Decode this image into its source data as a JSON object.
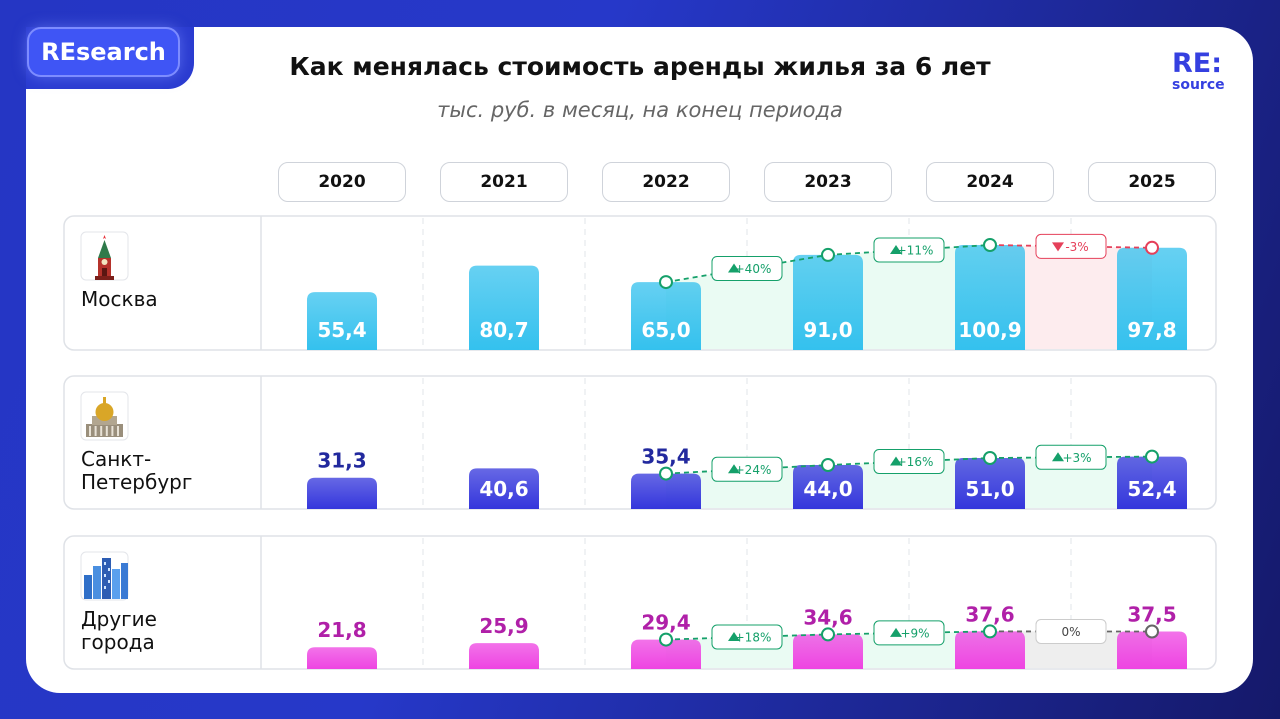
{
  "badge": "REsearch",
  "logo": {
    "line1": "RE:",
    "line2": "source"
  },
  "chart_data": {
    "type": "bar",
    "title": "Как менялась стоимость аренды жилья за 6 лет",
    "subtitle": "тыс. руб. в месяц, на конец периода",
    "categories": [
      "2020",
      "2021",
      "2022",
      "2023",
      "2024",
      "2025"
    ],
    "series": [
      {
        "name": "Москва",
        "label_lines": [
          "Москва"
        ],
        "icon": "kremlin-tower-icon",
        "color": "#34c1ee",
        "label_color": "#ffffff",
        "values": [
          55.4,
          80.7,
          65.0,
          91.0,
          100.9,
          97.8
        ],
        "labels": [
          "55,4",
          "80,7",
          "65,0",
          "91,0",
          "100,9",
          "97,8"
        ],
        "changes": [
          {
            "text": "+40%",
            "trend": "up"
          },
          {
            "text": "+11%",
            "trend": "up"
          },
          {
            "text": "-3%",
            "trend": "down"
          }
        ]
      },
      {
        "name": "Санкт-Петербург",
        "label_lines": [
          "Санкт-",
          "Петербург"
        ],
        "icon": "cathedral-icon",
        "color": "#3436dc",
        "label_color": "#ffffff",
        "values": [
          31.3,
          40.6,
          35.4,
          44.0,
          51.0,
          52.4
        ],
        "labels": [
          "31,3",
          "40,6",
          "35,4",
          "44,0",
          "51,0",
          "52,4"
        ],
        "changes": [
          {
            "text": "+24%",
            "trend": "up"
          },
          {
            "text": "+16%",
            "trend": "up"
          },
          {
            "text": "+3%",
            "trend": "up"
          }
        ]
      },
      {
        "name": "Другие города",
        "label_lines": [
          "Другие",
          "города"
        ],
        "icon": "city-buildings-icon",
        "color": "#ee44e2",
        "label_color": "#b020a8",
        "values": [
          21.8,
          25.9,
          29.4,
          34.6,
          37.6,
          37.5
        ],
        "labels": [
          "21,8",
          "25,9",
          "29,4",
          "34,6",
          "37,6",
          "37,5"
        ],
        "changes": [
          {
            "text": "+18%",
            "trend": "up"
          },
          {
            "text": "+9%",
            "trend": "up"
          },
          {
            "text": "0%",
            "trend": "flat"
          }
        ]
      }
    ],
    "trend_colors": {
      "up": "#15a06a",
      "down": "#e5405a",
      "flat": "#666666"
    }
  }
}
